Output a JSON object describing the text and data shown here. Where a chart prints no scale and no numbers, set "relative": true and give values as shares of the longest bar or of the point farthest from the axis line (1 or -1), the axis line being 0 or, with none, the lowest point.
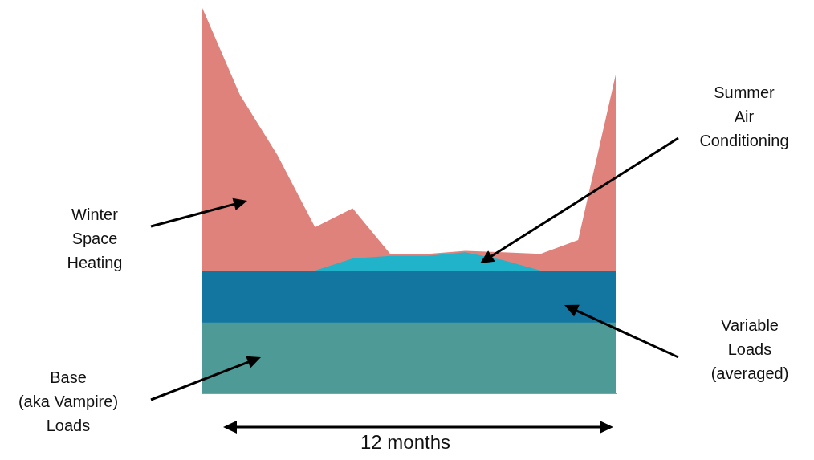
{
  "chart_data": {
    "type": "area",
    "relative": true,
    "categories": [
      null,
      null,
      null,
      null,
      null,
      null,
      null,
      null,
      null,
      null,
      null,
      null
    ],
    "series": [
      {
        "color": "#e0827c",
        "values": [
          1,
          0.775,
          0.618,
          0.431,
          0.48,
          0.362,
          0.362,
          0.37,
          0.366,
          0.362,
          0.398,
          0.827
        ]
      },
      {
        "color": "#21b3c9",
        "values": [
          0.319,
          0.319,
          0.319,
          0.319,
          0.35,
          0.357,
          0.357,
          0.366,
          0.346,
          0.319,
          0.319,
          0.319
        ]
      },
      {
        "color": "#1276a0",
        "values": [
          0.319,
          0.319,
          0.319,
          0.319,
          0.319,
          0.319,
          0.319,
          0.319,
          0.319,
          0.319,
          0.319,
          0.319
        ]
      },
      {
        "color": "#4e9a96",
        "values": [
          0.184,
          0.184,
          0.184,
          0.184,
          0.184,
          0.184,
          0.184,
          0.184,
          0.184,
          0.184,
          0.184,
          0.184
        ]
      }
    ],
    "annotations": [
      "Winter\nSpace\nHeating",
      "Summer\nAir\nConditioning",
      "Variable\nLoads\n(averaged)",
      "Base\n(aka Vampire)\nLoads",
      "12 months"
    ]
  }
}
